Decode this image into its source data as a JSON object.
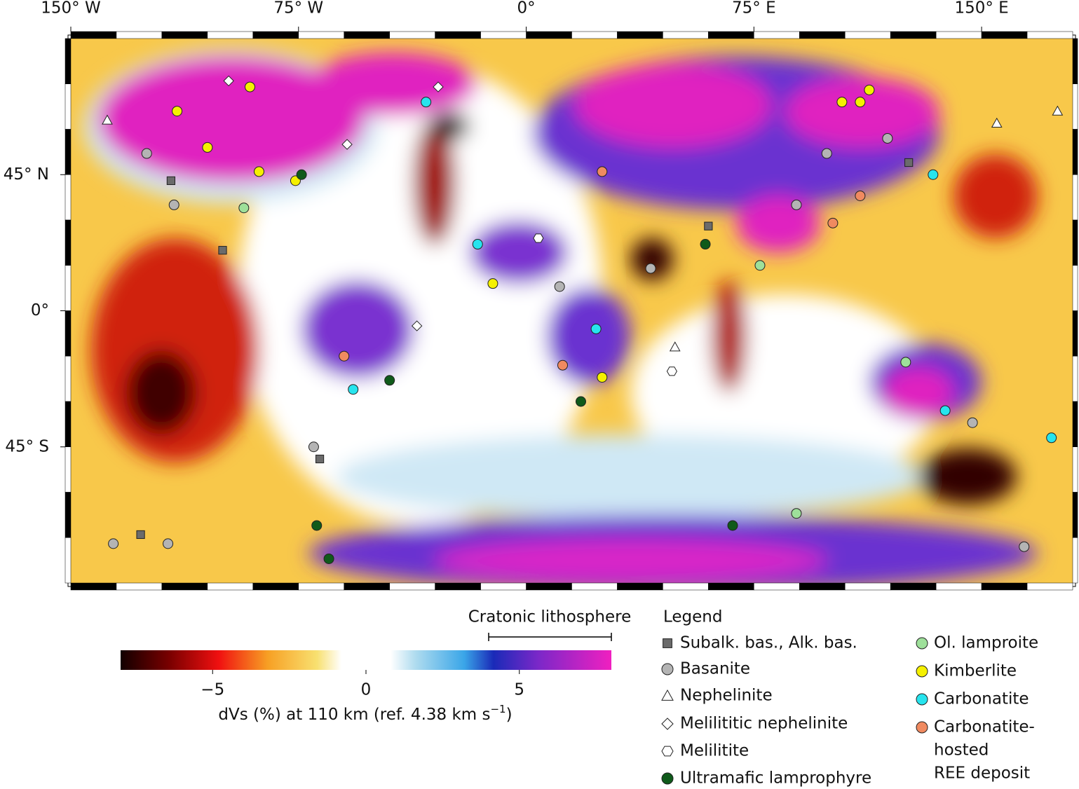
{
  "map": {
    "xlim": [
      -150,
      180
    ],
    "ylim": [
      -90,
      90
    ],
    "xticks": [
      {
        "value": -150,
        "label": "150° W"
      },
      {
        "value": -75,
        "label": "75° W"
      },
      {
        "value": 0,
        "label": "0°"
      },
      {
        "value": 75,
        "label": "75° E"
      },
      {
        "value": 150,
        "label": "150° E"
      }
    ],
    "yticks": [
      {
        "value": 45,
        "label": "45° N"
      },
      {
        "value": 0,
        "label": "0°"
      },
      {
        "value": -45,
        "label": "45° S"
      }
    ]
  },
  "colorbar": {
    "label": [
      "dVs (%) at 110 km (ref. 4.38 km s",
      "−1",
      ")"
    ],
    "lim": [
      -8,
      8
    ],
    "ticks": [
      {
        "value": -5,
        "label": "−5"
      },
      0,
      5
    ],
    "bracket_label": "Cratonic lithosphere",
    "bracket": [
      4,
      8
    ]
  },
  "legend": {
    "title": "Legend",
    "items": [
      {
        "name": [
          "Subalk. bas., Alk. bas."
        ],
        "marker": "square",
        "color": "#6b6b6b"
      },
      {
        "name": [
          "Basanite"
        ],
        "marker": "circle",
        "color": "#b4b4b4"
      },
      {
        "name": [
          "Nephelinite"
        ],
        "marker": "triangle",
        "color": "#ffffff"
      },
      {
        "name": [
          "Melilititic nephelinite"
        ],
        "marker": "diamond",
        "color": "#ffffff"
      },
      {
        "name": [
          "Melilitite"
        ],
        "marker": "hexagon",
        "color": "#ffffff"
      },
      {
        "name": [
          "Ultramafic lamprophyre"
        ],
        "marker": "circle",
        "color": "#0f5a1a"
      },
      {
        "name": [
          "Ol. lamproite"
        ],
        "marker": "circle",
        "color": "#9ee09a"
      },
      {
        "name": [
          "Kimberlite"
        ],
        "marker": "circle",
        "color": "#f5f000"
      },
      {
        "name": [
          "Carbonatite"
        ],
        "marker": "circle",
        "color": "#27e4ee"
      },
      {
        "name": [
          "Carbonatite-",
          "hosted",
          "REE deposit"
        ],
        "marker": "circle",
        "color": "#f08a60"
      }
    ]
  },
  "points": [
    {
      "lon": -115,
      "lat": 66,
      "type": 7
    },
    {
      "lon": -91,
      "lat": 74,
      "type": 7
    },
    {
      "lon": -105,
      "lat": 54,
      "type": 7
    },
    {
      "lon": -88,
      "lat": 46,
      "type": 7
    },
    {
      "lon": -76,
      "lat": 43,
      "type": 7
    },
    {
      "lon": -11,
      "lat": 9,
      "type": 7
    },
    {
      "lon": 104,
      "lat": 69,
      "type": 7
    },
    {
      "lon": 113,
      "lat": 73,
      "type": 7
    },
    {
      "lon": 25,
      "lat": -22,
      "type": 7
    },
    {
      "lon": 110,
      "lat": 69,
      "type": 7
    },
    {
      "lon": -116,
      "lat": 35,
      "type": 1
    },
    {
      "lon": -125,
      "lat": 52,
      "type": 1
    },
    {
      "lon": -70,
      "lat": -45,
      "type": 1
    },
    {
      "lon": -136,
      "lat": -77,
      "type": 1
    },
    {
      "lon": -118,
      "lat": -77,
      "type": 1
    },
    {
      "lon": 99,
      "lat": 52,
      "type": 1
    },
    {
      "lon": 119,
      "lat": 57,
      "type": 1
    },
    {
      "lon": 41,
      "lat": 14,
      "type": 1
    },
    {
      "lon": 11,
      "lat": 8,
      "type": 1
    },
    {
      "lon": 147,
      "lat": -37,
      "type": 1
    },
    {
      "lon": 164,
      "lat": -78,
      "type": 1
    },
    {
      "lon": 89,
      "lat": 35,
      "type": 1
    },
    {
      "lon": -117,
      "lat": 43,
      "type": 0
    },
    {
      "lon": -100,
      "lat": 20,
      "type": 0
    },
    {
      "lon": -127,
      "lat": -74,
      "type": 0
    },
    {
      "lon": 126,
      "lat": 49,
      "type": 0
    },
    {
      "lon": 60,
      "lat": 28,
      "type": 0
    },
    {
      "lon": -68,
      "lat": -49,
      "type": 0
    },
    {
      "lon": -138,
      "lat": 63,
      "type": 2
    },
    {
      "lon": 155,
      "lat": 62,
      "type": 2
    },
    {
      "lon": 175,
      "lat": 66,
      "type": 2
    },
    {
      "lon": 49,
      "lat": -12,
      "type": 2
    },
    {
      "lon": -98,
      "lat": 76,
      "type": 3
    },
    {
      "lon": -29,
      "lat": 74,
      "type": 3
    },
    {
      "lon": -59,
      "lat": 55,
      "type": 3
    },
    {
      "lon": -36,
      "lat": -5,
      "type": 3
    },
    {
      "lon": 4,
      "lat": 24,
      "type": 4
    },
    {
      "lon": 48,
      "lat": -20,
      "type": 4
    },
    {
      "lon": -74,
      "lat": 45,
      "type": 5
    },
    {
      "lon": -69,
      "lat": -71,
      "type": 5
    },
    {
      "lon": -65,
      "lat": -82,
      "type": 5
    },
    {
      "lon": 68,
      "lat": -71,
      "type": 5
    },
    {
      "lon": -45,
      "lat": -23,
      "type": 5
    },
    {
      "lon": 18,
      "lat": -30,
      "type": 5
    },
    {
      "lon": 59,
      "lat": 22,
      "type": 5
    },
    {
      "lon": -93,
      "lat": 34,
      "type": 6
    },
    {
      "lon": 89,
      "lat": -67,
      "type": 6
    },
    {
      "lon": 125,
      "lat": -17,
      "type": 6
    },
    {
      "lon": 77,
      "lat": 15,
      "type": 6
    },
    {
      "lon": 23,
      "lat": -6,
      "type": 8
    },
    {
      "lon": -16,
      "lat": 22,
      "type": 8
    },
    {
      "lon": 138,
      "lat": -33,
      "type": 8
    },
    {
      "lon": 173,
      "lat": -42,
      "type": 8
    },
    {
      "lon": 134,
      "lat": 45,
      "type": 8
    },
    {
      "lon": -33,
      "lat": 69,
      "type": 8
    },
    {
      "lon": -57,
      "lat": -26,
      "type": 8
    },
    {
      "lon": -60,
      "lat": -15,
      "type": 9
    },
    {
      "lon": 101,
      "lat": 29,
      "type": 9
    },
    {
      "lon": 110,
      "lat": 38,
      "type": 9
    },
    {
      "lon": 12,
      "lat": -18,
      "type": 9
    },
    {
      "lon": 25,
      "lat": 46,
      "type": 9
    }
  ]
}
